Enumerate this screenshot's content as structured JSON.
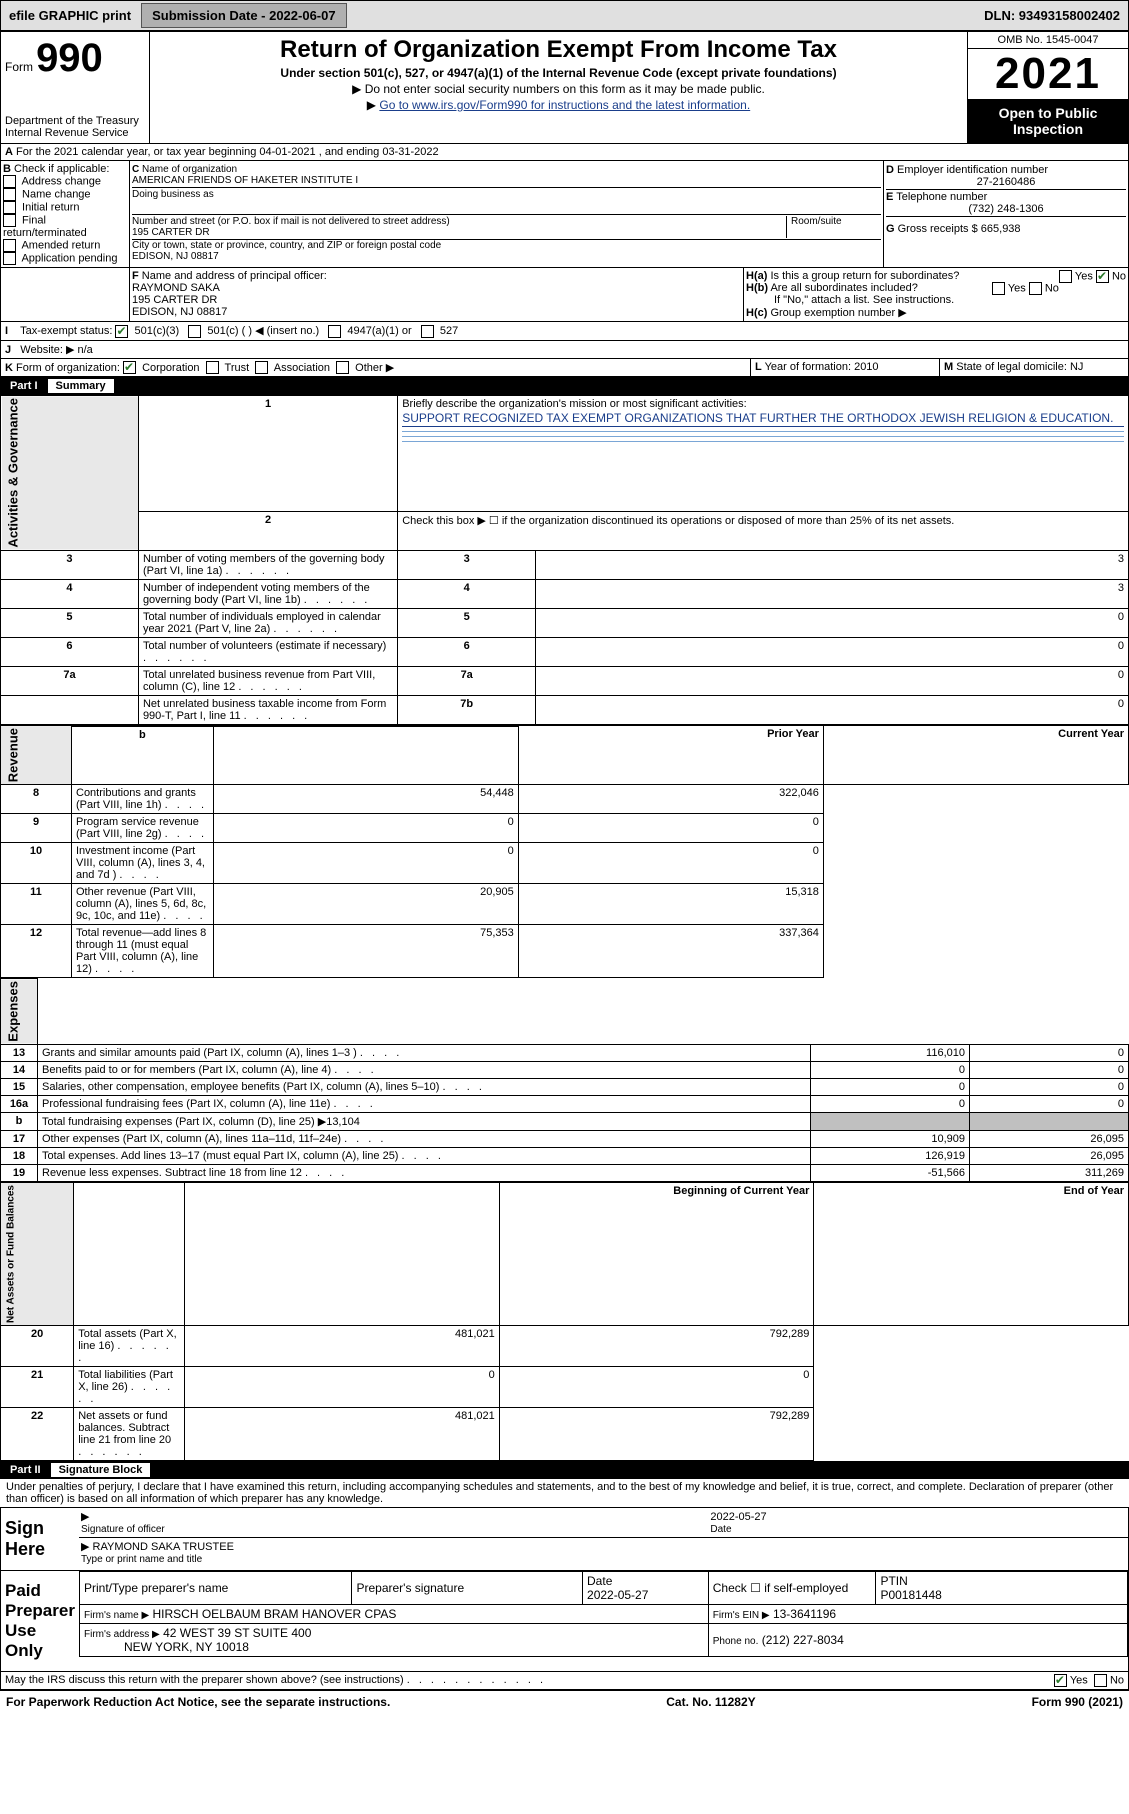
{
  "topbar": {
    "efile": "efile GRAPHIC print",
    "subdate_lbl": "Submission Date - 2022-06-07",
    "dln": "DLN: 93493158002402"
  },
  "hdr": {
    "formword": "Form",
    "formnum": "990",
    "dept": "Department of the Treasury",
    "irs": "Internal Revenue Service",
    "title": "Return of Organization Exempt From Income Tax",
    "sub1": "Under section 501(c), 527, or 4947(a)(1) of the Internal Revenue Code (except private foundations)",
    "sub2": "Do not enter social security numbers on this form as it may be made public.",
    "sub3": "Go to www.irs.gov/Form990 for instructions and the latest information.",
    "omb": "OMB No. 1545-0047",
    "year": "2021",
    "open": "Open to Public Inspection"
  },
  "A": {
    "text": "For the 2021 calendar year, or tax year beginning 04-01-2021   , and ending 03-31-2022"
  },
  "B": {
    "title": "Check if applicable:",
    "opts": [
      "Address change",
      "Name change",
      "Initial return",
      "Final return/terminated",
      "Amended return",
      "Application pending"
    ]
  },
  "C": {
    "name_lbl": "Name of organization",
    "name": "AMERICAN FRIENDS OF HAKETER INSTITUTE I",
    "dba_lbl": "Doing business as",
    "dba": "",
    "street_lbl": "Number and street (or P.O. box if mail is not delivered to street address)",
    "room_lbl": "Room/suite",
    "street": "195 CARTER DR",
    "city_lbl": "City or town, state or province, country, and ZIP or foreign postal code",
    "city": "EDISON, NJ  08817"
  },
  "D": {
    "lbl": "Employer identification number",
    "val": "27-2160486"
  },
  "E": {
    "lbl": "Telephone number",
    "val": "(732) 248-1306"
  },
  "G": {
    "lbl": "Gross receipts $",
    "val": "665,938"
  },
  "F": {
    "lbl": "Name and address of principal officer:",
    "n1": "RAYMOND SAKA",
    "n2": "195 CARTER DR",
    "n3": "EDISON, NJ  08817"
  },
  "H": {
    "a": "Is this a group return for subordinates?",
    "a_yes": "Yes",
    "a_no": "No",
    "b": "Are all subordinates included?",
    "b_yes": "Yes",
    "b_no": "No",
    "b_note": "If \"No,\" attach a list. See instructions.",
    "c": "Group exemption number ▶"
  },
  "I": {
    "lbl": "Tax-exempt status:",
    "o1": "501(c)(3)",
    "o2": "501(c) (  ) ◀ (insert no.)",
    "o3": "4947(a)(1) or",
    "o4": "527"
  },
  "J": {
    "lbl": "Website: ▶",
    "val": "n/a"
  },
  "K": {
    "lbl": "Form of organization:",
    "opts": [
      "Corporation",
      "Trust",
      "Association",
      "Other ▶"
    ]
  },
  "L": {
    "lbl": "Year of formation: 2010"
  },
  "M": {
    "lbl": "State of legal domicile: NJ"
  },
  "part1": {
    "title": "Part I",
    "sub": "Summary"
  },
  "sideA": "Activities & Governance",
  "sideR": "Revenue",
  "sideE": "Expenses",
  "sideN": "Net Assets or Fund Balances",
  "l1": {
    "t": "Briefly describe the organization's mission or most significant activities:",
    "m": "SUPPORT RECOGNIZED TAX EXEMPT ORGANIZATIONS THAT FURTHER THE ORTHODOX JEWISH RELIGION & EDUCATION."
  },
  "l2": "Check this box ▶ ☐  if the organization discontinued its operations or disposed of more than 25% of its net assets.",
  "gov_rows": [
    {
      "n": "3",
      "t": "Number of voting members of the governing body (Part VI, line 1a)",
      "b": "3",
      "v": "3"
    },
    {
      "n": "4",
      "t": "Number of independent voting members of the governing body (Part VI, line 1b)",
      "b": "4",
      "v": "3"
    },
    {
      "n": "5",
      "t": "Total number of individuals employed in calendar year 2021 (Part V, line 2a)",
      "b": "5",
      "v": "0"
    },
    {
      "n": "6",
      "t": "Total number of volunteers (estimate if necessary)",
      "b": "6",
      "v": "0"
    },
    {
      "n": "7a",
      "t": "Total unrelated business revenue from Part VIII, column (C), line 12",
      "b": "7a",
      "v": "0"
    },
    {
      "n": "",
      "t": "Net unrelated business taxable income from Form 990-T, Part I, line 11",
      "b": "7b",
      "v": "0"
    }
  ],
  "col_h": {
    "prior": "Prior Year",
    "current": "Current Year",
    "boy": "Beginning of Current Year",
    "eoy": "End of Year"
  },
  "rev_rows": [
    {
      "n": "8",
      "t": "Contributions and grants (Part VIII, line 1h)",
      "p": "54,448",
      "c": "322,046"
    },
    {
      "n": "9",
      "t": "Program service revenue (Part VIII, line 2g)",
      "p": "0",
      "c": "0"
    },
    {
      "n": "10",
      "t": "Investment income (Part VIII, column (A), lines 3, 4, and 7d )",
      "p": "0",
      "c": "0"
    },
    {
      "n": "11",
      "t": "Other revenue (Part VIII, column (A), lines 5, 6d, 8c, 9c, 10c, and 11e)",
      "p": "20,905",
      "c": "15,318"
    },
    {
      "n": "12",
      "t": "Total revenue—add lines 8 through 11 (must equal Part VIII, column (A), line 12)",
      "p": "75,353",
      "c": "337,364"
    }
  ],
  "exp_rows": [
    {
      "n": "13",
      "t": "Grants and similar amounts paid (Part IX, column (A), lines 1–3 )",
      "p": "116,010",
      "c": "0"
    },
    {
      "n": "14",
      "t": "Benefits paid to or for members (Part IX, column (A), line 4)",
      "p": "0",
      "c": "0"
    },
    {
      "n": "15",
      "t": "Salaries, other compensation, employee benefits (Part IX, column (A), lines 5–10)",
      "p": "0",
      "c": "0"
    },
    {
      "n": "16a",
      "t": "Professional fundraising fees (Part IX, column (A), line 11e)",
      "p": "0",
      "c": "0"
    },
    {
      "n": "b",
      "t": "Total fundraising expenses (Part IX, column (D), line 25) ▶13,104",
      "p": "",
      "c": "",
      "grey": true
    },
    {
      "n": "17",
      "t": "Other expenses (Part IX, column (A), lines 11a–11d, 11f–24e)",
      "p": "10,909",
      "c": "26,095"
    },
    {
      "n": "18",
      "t": "Total expenses. Add lines 13–17 (must equal Part IX, column (A), line 25)",
      "p": "126,919",
      "c": "26,095"
    },
    {
      "n": "19",
      "t": "Revenue less expenses. Subtract line 18 from line 12",
      "p": "-51,566",
      "c": "311,269"
    }
  ],
  "net_rows": [
    {
      "n": "20",
      "t": "Total assets (Part X, line 16)",
      "p": "481,021",
      "c": "792,289"
    },
    {
      "n": "21",
      "t": "Total liabilities (Part X, line 26)",
      "p": "0",
      "c": "0"
    },
    {
      "n": "22",
      "t": "Net assets or fund balances. Subtract line 21 from line 20",
      "p": "481,021",
      "c": "792,289"
    }
  ],
  "part2": {
    "title": "Part II",
    "sub": "Signature Block"
  },
  "penalty": "Under penalties of perjury, I declare that I have examined this return, including accompanying schedules and statements, and to the best of my knowledge and belief, it is true, correct, and complete. Declaration of preparer (other than officer) is based on all information of which preparer has any knowledge.",
  "sign": {
    "here": "Sign Here",
    "sig_lbl": "Signature of officer",
    "date_lbl": "Date",
    "date": "2022-05-27",
    "name": "RAYMOND SAKA TRUSTEE",
    "name_lbl": "Type or print name and title"
  },
  "paid": {
    "title": "Paid Preparer Use Only",
    "h1": "Print/Type preparer's name",
    "h2": "Preparer's signature",
    "h3": "Date",
    "h3v": "2022-05-27",
    "h4": "Check ☐ if self-employed",
    "h5": "PTIN",
    "h5v": "P00181448",
    "firm_lbl": "Firm's name   ▶",
    "firm": "HIRSCH OELBAUM BRAM HANOVER CPAS",
    "ein_lbl": "Firm's EIN ▶",
    "ein": "13-3641196",
    "addr_lbl": "Firm's address ▶",
    "addr1": "42 WEST 39 ST SUITE 400",
    "addr2": "NEW YORK, NY  10018",
    "phone_lbl": "Phone no.",
    "phone": "(212) 227-8034"
  },
  "may": {
    "t": "May the IRS discuss this return with the preparer shown above? (see instructions)",
    "yes": "Yes",
    "no": "No"
  },
  "footer": {
    "l": "For Paperwork Reduction Act Notice, see the separate instructions.",
    "m": "Cat. No. 11282Y",
    "r": "Form 990 (2021)"
  }
}
